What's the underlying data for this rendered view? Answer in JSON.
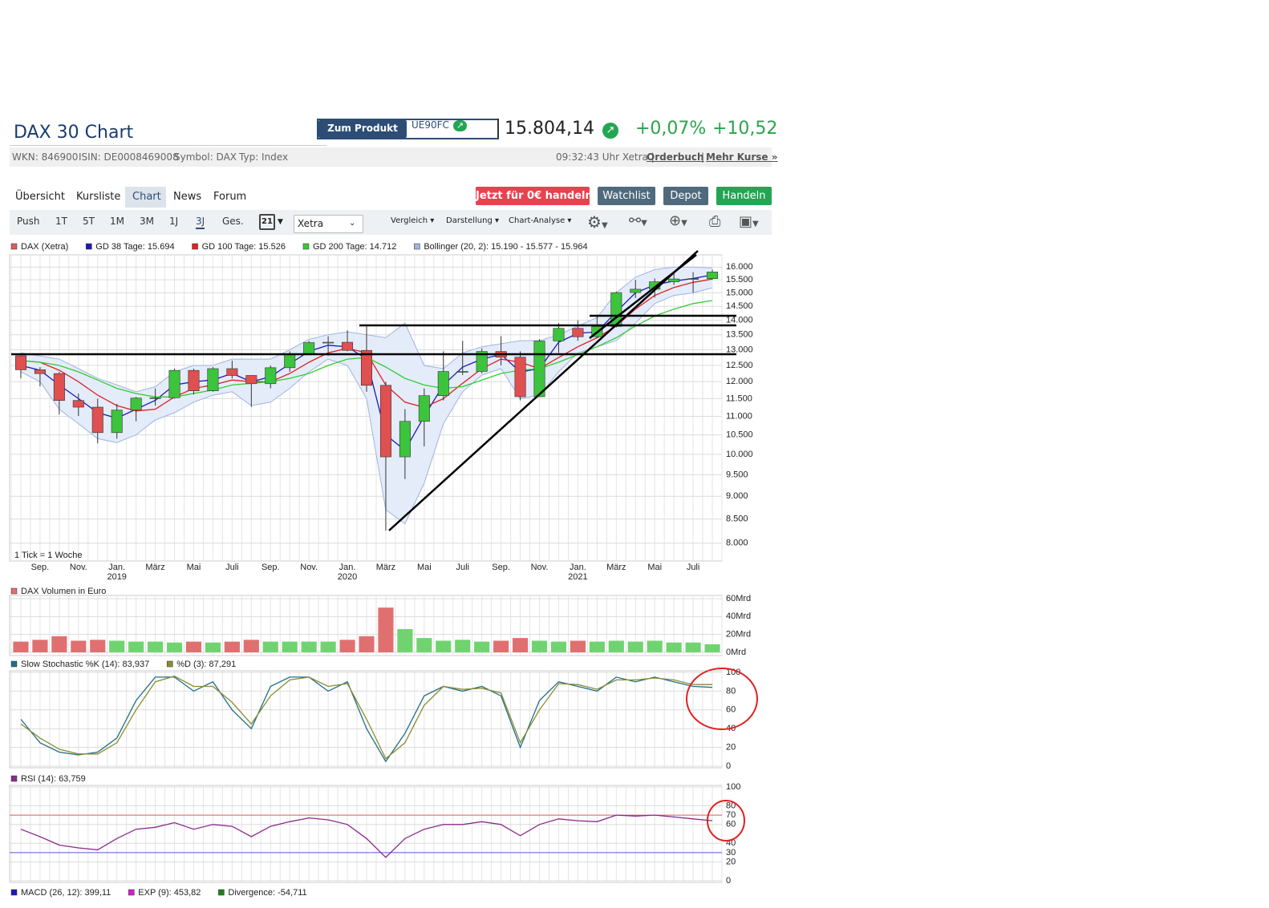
{
  "header": {
    "title": "DAX 30 Chart",
    "product_button": "Zum Produkt",
    "product_code": "UE90FC",
    "price": "15.804,14",
    "change_percent": "+0,07%",
    "change_absolute": "+10,52",
    "info": [
      "WKN: 846900",
      "ISIN: DE0008469008",
      "Symbol: DAX",
      "Typ: Index"
    ],
    "time": "09:32:43 Uhr Xetra |",
    "orderbook": "Orderbuch",
    "more_prices": "Mehr Kurse »"
  },
  "tabs": [
    "Übersicht",
    "Kursliste",
    "Chart",
    "News",
    "Forum"
  ],
  "buttons": [
    "Jetzt für 0€ handeln",
    "Watchlist",
    "Depot",
    "Handeln"
  ],
  "toolbar": {
    "periods": [
      "Push",
      "1T",
      "5T",
      "1M",
      "3M",
      "1J",
      "3J",
      "Ges."
    ],
    "calendar": "21",
    "exchange": "Xetra",
    "menus": [
      "Vergleich",
      "Darstellung",
      "Chart-Analyse"
    ]
  },
  "chart_data": [
    {
      "type": "candlestick",
      "log": true,
      "grid": true,
      "note": "1 Tick = 1 Woche",
      "categories": [
        null,
        "Sep.",
        null,
        "Nov.",
        null,
        "Jan.",
        null,
        "März",
        null,
        "Mai",
        null,
        "Juli",
        null,
        "Sep.",
        null,
        "Nov.",
        null,
        "Jan.",
        null,
        "März",
        null,
        "Mai",
        null,
        "Juli",
        null,
        "Sep.",
        null,
        "Nov.",
        null,
        "Jan.",
        null,
        "März",
        null,
        "Mai",
        null,
        "Juli",
        null
      ],
      "years": [
        null,
        null,
        null,
        null,
        null,
        "2019",
        null,
        null,
        null,
        null,
        null,
        null,
        null,
        null,
        null,
        null,
        null,
        "2020",
        null,
        null,
        null,
        null,
        null,
        null,
        null,
        null,
        null,
        null,
        null,
        "2021",
        null,
        null,
        null,
        null,
        null,
        null,
        null
      ],
      "ylim": [
        7650,
        16500
      ],
      "yticks": [
        {
          "value": 8000,
          "label": "8.000"
        },
        {
          "value": 8500,
          "label": "8.500"
        },
        {
          "value": 9000,
          "label": "9.000"
        },
        {
          "value": 9500,
          "label": "9.500"
        },
        {
          "value": 10000,
          "label": "10.000"
        },
        {
          "value": 10500,
          "label": "10.500"
        },
        {
          "value": 11000,
          "label": "11.000"
        },
        {
          "value": 11500,
          "label": "11.500"
        },
        {
          "value": 12000,
          "label": "12.000"
        },
        {
          "value": 12500,
          "label": "12.500"
        },
        {
          "value": 13000,
          "label": "13.000"
        },
        {
          "value": 13500,
          "label": "13.500"
        },
        {
          "value": 14000,
          "label": "14.000"
        },
        {
          "value": 14500,
          "label": "14.500"
        },
        {
          "value": 15000,
          "label": "15.000"
        },
        {
          "value": 15500,
          "label": "15.500"
        },
        {
          "value": 16000,
          "label": "16.000"
        }
      ],
      "series": [
        {
          "name": "DAX (Xetra)",
          "color": "#e05a5a",
          "up_color": "#3cc43c",
          "down_color": "#e05050",
          "open": [
            12806,
            12364,
            12246,
            11447,
            11257,
            10559,
            11173,
            11515,
            11526,
            12344,
            11727,
            12399,
            12189,
            11939,
            12428,
            12867,
            13236,
            13249,
            12981,
            11890,
            9936,
            10862,
            11586,
            12311,
            12313,
            12945,
            12761,
            11556,
            13291,
            13719,
            13433,
            13786,
            15008,
            15136,
            15421,
            15531,
            15544
          ],
          "high": [
            12850,
            12450,
            12300,
            11650,
            11500,
            11350,
            11550,
            11800,
            12400,
            12400,
            12450,
            12650,
            12200,
            12500,
            12950,
            13300,
            13450,
            13650,
            13800,
            12000,
            11200,
            11800,
            12950,
            13300,
            13050,
            13450,
            12950,
            13350,
            13900,
            14000,
            14200,
            15050,
            15500,
            15550,
            15800,
            15800,
            15900
          ],
          "low": [
            12100,
            11860,
            11051,
            11010,
            10279,
            10400,
            10864,
            11299,
            11500,
            11620,
            11700,
            12100,
            11266,
            11800,
            12300,
            12850,
            12800,
            12950,
            11700,
            8255,
            9400,
            10200,
            11450,
            12200,
            12250,
            12500,
            11450,
            11550,
            12900,
            13300,
            13400,
            13750,
            14800,
            14820,
            15300,
            15000,
            15500
          ],
          "close": [
            12364,
            12246,
            11447,
            11257,
            10559,
            11173,
            11515,
            11526,
            12344,
            11727,
            12399,
            12189,
            11939,
            12428,
            12867,
            13236,
            13249,
            12981,
            11890,
            9936,
            10862,
            11586,
            12311,
            12313,
            12945,
            12761,
            11556,
            13291,
            13719,
            13433,
            13786,
            15008,
            15136,
            15421,
            15531,
            15544,
            15804
          ]
        },
        {
          "name": "GD 38 Tage: 15.694",
          "color": "#1a1ab8",
          "values": [
            12500,
            12350,
            11900,
            11500,
            11100,
            10950,
            11200,
            11450,
            11900,
            12000,
            12050,
            12250,
            12000,
            12150,
            12550,
            12950,
            13150,
            13100,
            12700,
            10500,
            10100,
            11000,
            11900,
            12450,
            12700,
            12850,
            12300,
            12400,
            13250,
            13550,
            13600,
            14300,
            15000,
            15300,
            15450,
            15550,
            15694
          ]
        },
        {
          "name": "GD 100 Tage: 15.526",
          "color": "#e02020",
          "values": [
            12650,
            12600,
            12350,
            12000,
            11600,
            11300,
            11150,
            11200,
            11550,
            11800,
            11900,
            12050,
            12000,
            12000,
            12250,
            12600,
            12900,
            13050,
            12900,
            11900,
            11400,
            11250,
            11500,
            11950,
            12400,
            12700,
            12600,
            12400,
            12750,
            13100,
            13400,
            13800,
            14400,
            14900,
            15200,
            15400,
            15526
          ]
        },
        {
          "name": "GD 200 Tage: 14.712",
          "color": "#33cc33",
          "values": [
            12650,
            12600,
            12500,
            12300,
            12050,
            11800,
            11650,
            11550,
            11550,
            11650,
            11750,
            11900,
            11950,
            12000,
            12100,
            12250,
            12500,
            12700,
            12750,
            12450,
            12100,
            11900,
            11800,
            11850,
            12050,
            12250,
            12350,
            12400,
            12600,
            12850,
            13100,
            13400,
            13800,
            14150,
            14400,
            14600,
            14712
          ]
        },
        {
          "name": "Bollinger (20, 2): 15.190 - 15.577 - 15.964",
          "color": "#9fb4de",
          "fill": "#e4ecfa",
          "upper": [
            12900,
            12800,
            12700,
            12400,
            12100,
            11900,
            11700,
            11850,
            12300,
            12500,
            12500,
            12700,
            12700,
            12700,
            13000,
            13350,
            13500,
            13600,
            13500,
            13400,
            13900,
            12500,
            12400,
            12900,
            13100,
            13200,
            13300,
            13300,
            13500,
            13800,
            14100,
            15000,
            15600,
            15900,
            16000,
            16000,
            15964
          ],
          "lower": [
            12300,
            12000,
            11200,
            10800,
            10400,
            10300,
            10500,
            10900,
            11100,
            11400,
            11600,
            11700,
            11300,
            11400,
            11800,
            12300,
            12700,
            12500,
            11500,
            8700,
            8400,
            9300,
            10800,
            11700,
            12200,
            12400,
            11500,
            11600,
            12300,
            12900,
            13100,
            13300,
            13900,
            14600,
            14900,
            15000,
            15190
          ]
        }
      ]
    },
    {
      "type": "bar",
      "grid": true,
      "ylim": [
        0,
        60
      ],
      "yticks": [
        {
          "value": 0,
          "label": "0Mrd"
        },
        {
          "value": 20,
          "label": "20Mrd"
        },
        {
          "value": 40,
          "label": "40Mrd"
        },
        {
          "value": 60,
          "label": "60Mrd"
        }
      ],
      "series": [
        {
          "name": "DAX Volumen in Euro",
          "color": "#e07070",
          "up_color": "#6fd46f",
          "down_color": "#e07070",
          "values": [
            12,
            14,
            18,
            13,
            14,
            13,
            12,
            12,
            11,
            12,
            11,
            12,
            14,
            12,
            12,
            12,
            12,
            14,
            18,
            50,
            26,
            16,
            13,
            14,
            12,
            13,
            16,
            13,
            12,
            13,
            12,
            13,
            12,
            13,
            11,
            11,
            9
          ]
        }
      ]
    },
    {
      "type": "line",
      "grid": true,
      "ylim": [
        0,
        100
      ],
      "yticks": [
        0,
        20,
        40,
        60,
        80,
        100
      ],
      "series": [
        {
          "name": "Slow Stochastic %K (14): 83,937",
          "color": "#1f6f8b",
          "values": [
            50,
            25,
            15,
            12,
            15,
            30,
            70,
            95,
            95,
            80,
            90,
            60,
            40,
            85,
            95,
            95,
            80,
            90,
            40,
            5,
            35,
            75,
            85,
            80,
            85,
            75,
            20,
            70,
            90,
            85,
            80,
            95,
            90,
            95,
            90,
            85,
            84
          ]
        },
        {
          "name": "%D (3): 87,291",
          "color": "#8b8b2f",
          "values": [
            45,
            30,
            18,
            13,
            13,
            25,
            60,
            90,
            96,
            85,
            85,
            68,
            45,
            75,
            92,
            95,
            85,
            88,
            50,
            8,
            25,
            65,
            85,
            82,
            83,
            78,
            25,
            60,
            88,
            87,
            82,
            92,
            92,
            94,
            92,
            87,
            87
          ]
        }
      ]
    },
    {
      "type": "line",
      "grid": true,
      "ylim": [
        0,
        100
      ],
      "yticks": [
        0,
        20,
        30,
        40,
        60,
        70,
        80,
        100
      ],
      "reference_lines": [
        {
          "value": 70,
          "color": "#e06060"
        },
        {
          "value": 30,
          "color": "#6060d0"
        }
      ],
      "series": [
        {
          "name": "RSI (14): 63,759",
          "color": "#8b2a8b",
          "values": [
            55,
            47,
            38,
            35,
            33,
            45,
            55,
            57,
            62,
            55,
            60,
            58,
            47,
            58,
            63,
            67,
            65,
            60,
            45,
            25,
            45,
            55,
            60,
            60,
            63,
            60,
            48,
            60,
            66,
            64,
            63,
            70,
            69,
            70,
            68,
            66,
            64
          ]
        }
      ]
    }
  ],
  "macd_legend": [
    {
      "name": "MACD (26, 12): 399,11",
      "color": "#1a1ab8"
    },
    {
      "name": "EXP (9): 453,82",
      "color": "#d020d0"
    },
    {
      "name": "Divergence: -54,711",
      "color": "#208020"
    }
  ]
}
